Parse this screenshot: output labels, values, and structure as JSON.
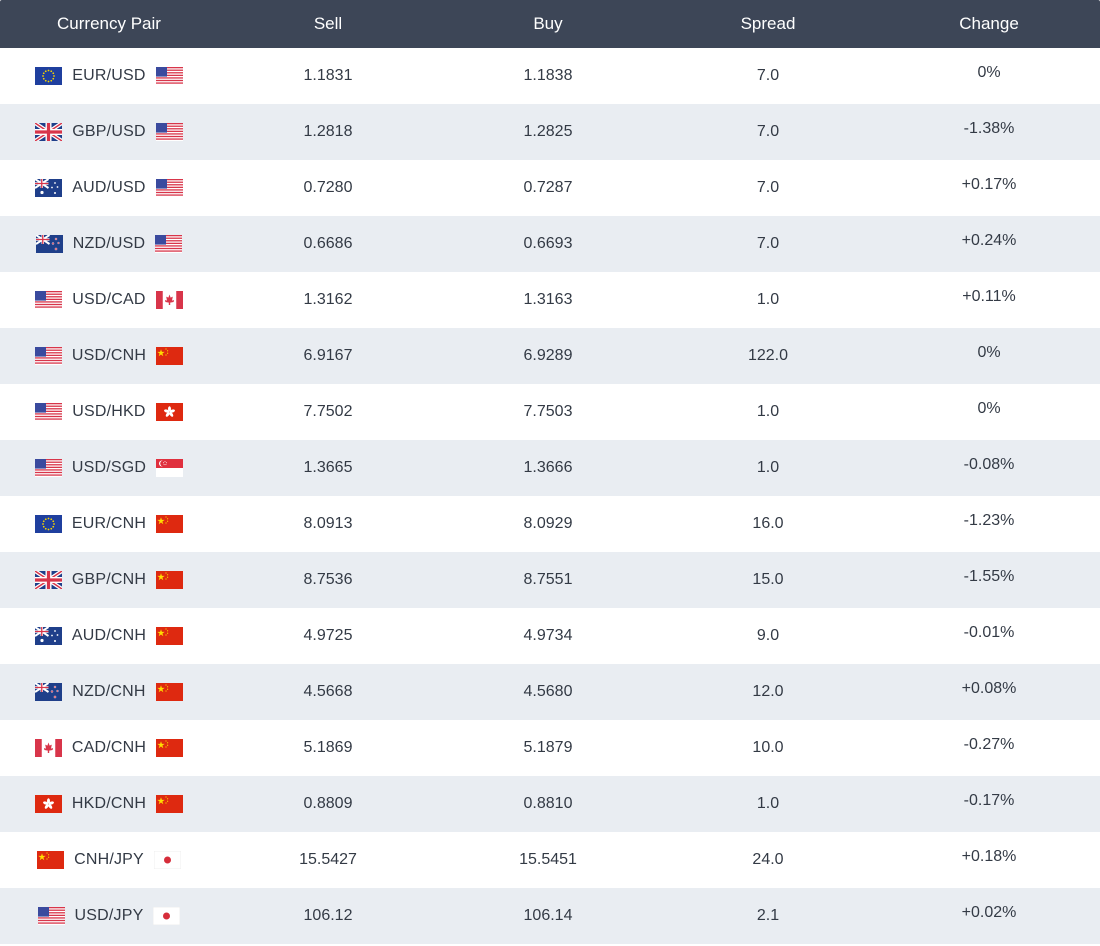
{
  "headers": {
    "pair": "Currency Pair",
    "sell": "Sell",
    "buy": "Buy",
    "spread": "Spread",
    "change": "Change"
  },
  "rows": [
    {
      "base": "eu",
      "pair": "EUR/USD",
      "quote": "us",
      "sell": "1.1831",
      "buy": "1.1838",
      "spread": "7.0",
      "change": "0%"
    },
    {
      "base": "gb",
      "pair": "GBP/USD",
      "quote": "us",
      "sell": "1.2818",
      "buy": "1.2825",
      "spread": "7.0",
      "change": "-1.38%"
    },
    {
      "base": "au",
      "pair": "AUD/USD",
      "quote": "us",
      "sell": "0.7280",
      "buy": "0.7287",
      "spread": "7.0",
      "change": "+0.17%"
    },
    {
      "base": "nz",
      "pair": "NZD/USD",
      "quote": "us",
      "sell": "0.6686",
      "buy": "0.6693",
      "spread": "7.0",
      "change": "+0.24%"
    },
    {
      "base": "us",
      "pair": "USD/CAD",
      "quote": "ca",
      "sell": "1.3162",
      "buy": "1.3163",
      "spread": "1.0",
      "change": "+0.11%"
    },
    {
      "base": "us",
      "pair": "USD/CNH",
      "quote": "cn",
      "sell": "6.9167",
      "buy": "6.9289",
      "spread": "122.0",
      "change": "0%"
    },
    {
      "base": "us",
      "pair": "USD/HKD",
      "quote": "hk",
      "sell": "7.7502",
      "buy": "7.7503",
      "spread": "1.0",
      "change": "0%"
    },
    {
      "base": "us",
      "pair": "USD/SGD",
      "quote": "sg",
      "sell": "1.3665",
      "buy": "1.3666",
      "spread": "1.0",
      "change": "-0.08%"
    },
    {
      "base": "eu",
      "pair": "EUR/CNH",
      "quote": "cn",
      "sell": "8.0913",
      "buy": "8.0929",
      "spread": "16.0",
      "change": "-1.23%"
    },
    {
      "base": "gb",
      "pair": "GBP/CNH",
      "quote": "cn",
      "sell": "8.7536",
      "buy": "8.7551",
      "spread": "15.0",
      "change": "-1.55%"
    },
    {
      "base": "au",
      "pair": "AUD/CNH",
      "quote": "cn",
      "sell": "4.9725",
      "buy": "4.9734",
      "spread": "9.0",
      "change": "-0.01%"
    },
    {
      "base": "nz",
      "pair": "NZD/CNH",
      "quote": "cn",
      "sell": "4.5668",
      "buy": "4.5680",
      "spread": "12.0",
      "change": "+0.08%"
    },
    {
      "base": "ca",
      "pair": "CAD/CNH",
      "quote": "cn",
      "sell": "5.1869",
      "buy": "5.1879",
      "spread": "10.0",
      "change": "-0.27%"
    },
    {
      "base": "hk",
      "pair": "HKD/CNH",
      "quote": "cn",
      "sell": "0.8809",
      "buy": "0.8810",
      "spread": "1.0",
      "change": "-0.17%"
    },
    {
      "base": "cn",
      "pair": "CNH/JPY",
      "quote": "jp",
      "sell": "15.5427",
      "buy": "15.5451",
      "spread": "24.0",
      "change": "+0.18%"
    },
    {
      "base": "us",
      "pair": "USD/JPY",
      "quote": "jp",
      "sell": "106.12",
      "buy": "106.14",
      "spread": "2.1",
      "change": "+0.02%"
    }
  ],
  "colors": {
    "header_bg": "#3d4657",
    "row_alt_bg": "#e9edf2",
    "text": "#333a45"
  }
}
